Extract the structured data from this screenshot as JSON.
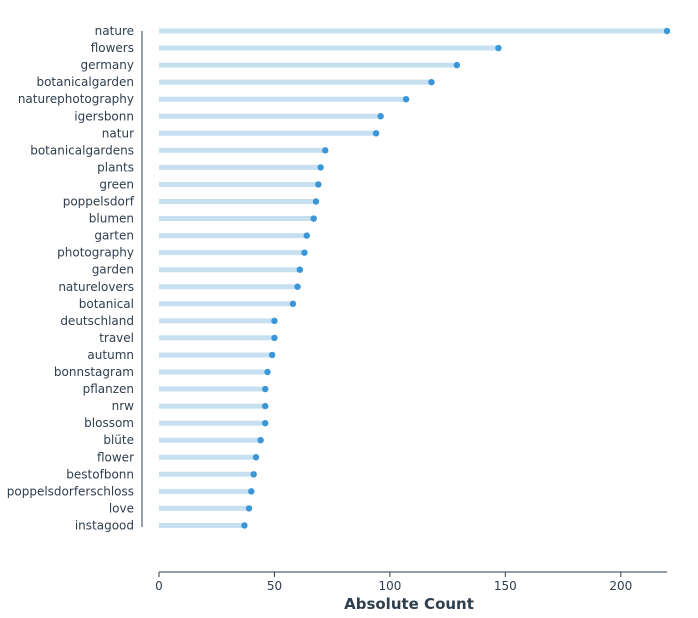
{
  "chart_data": {
    "type": "lollipop",
    "title": "",
    "xlabel": "Absolute Count",
    "ylabel": "",
    "xlim": [
      0,
      220
    ],
    "xticks": [
      0,
      50,
      100,
      150,
      200
    ],
    "grid": false,
    "categories": [
      "nature",
      "flowers",
      "germany",
      "botanicalgarden",
      "naturephotography",
      "igersbonn",
      "natur",
      "botanicalgardens",
      "plants",
      "green",
      "poppelsdorf",
      "blumen",
      "garten",
      "photography",
      "garden",
      "naturelovers",
      "botanical",
      "deutschland",
      "travel",
      "autumn",
      "bonnstagram",
      "pflanzen",
      "nrw",
      "blossom",
      "blüte",
      "flower",
      "bestofbonn",
      "poppelsdorferschloss",
      "love",
      "instagood"
    ],
    "values": [
      220,
      147,
      129,
      118,
      107,
      96,
      94,
      72,
      70,
      69,
      68,
      67,
      64,
      63,
      61,
      60,
      58,
      50,
      50,
      49,
      47,
      46,
      46,
      46,
      44,
      42,
      41,
      40,
      39,
      37
    ],
    "colors": {
      "stem": "#c6e0f2",
      "dot": "#3a96d6",
      "text": "#2f3e4e",
      "axis": "#2f3e4e"
    }
  }
}
